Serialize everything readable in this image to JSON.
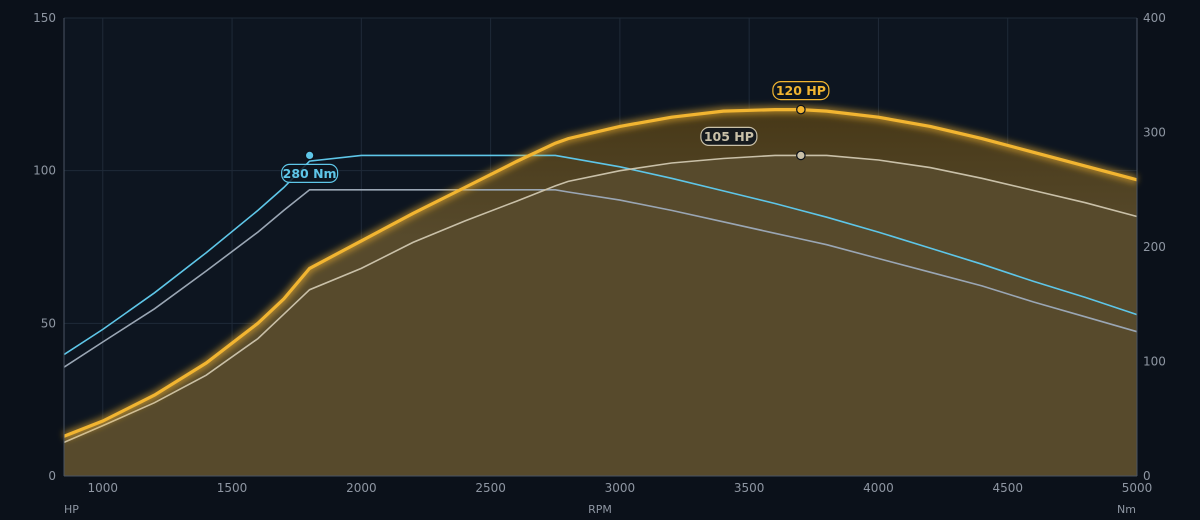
{
  "chart_data": {
    "type": "line",
    "x": [
      850,
      1000,
      1200,
      1400,
      1600,
      1700,
      1800,
      2000,
      2200,
      2400,
      2600,
      2750,
      2800,
      3000,
      3200,
      3400,
      3600,
      3700,
      3800,
      4000,
      4200,
      4400,
      4600,
      4800,
      5000
    ],
    "series": [
      {
        "name": "",
        "axis": "left",
        "color": "#f2b531",
        "values": [
          13,
          18,
          26.5,
          37,
          50,
          58,
          68,
          77,
          86,
          94.5,
          103,
          109,
          110.5,
          114.5,
          117.5,
          119.5,
          120,
          120,
          119.5,
          117.5,
          114.5,
          110.5,
          106,
          101.5,
          97
        ]
      },
      {
        "name": "",
        "axis": "left",
        "color": "#c9c0a8",
        "values": [
          11,
          16.5,
          24,
          33,
          45,
          53,
          61,
          68,
          76.5,
          83.5,
          90,
          95,
          96.5,
          100,
          102.5,
          104,
          105,
          105,
          105,
          103.5,
          101,
          97.5,
          93.5,
          89.5,
          85
        ]
      },
      {
        "name": "",
        "axis": "right",
        "color": "#5ec6e8",
        "values": [
          106,
          128,
          160,
          195,
          232,
          252,
          275,
          280,
          280,
          280,
          280,
          280,
          278,
          270,
          260,
          249,
          238,
          232,
          226,
          213,
          199,
          185,
          170,
          156,
          141
        ]
      },
      {
        "name": "",
        "axis": "right",
        "color": "#9aa6b4",
        "values": [
          95,
          117,
          146,
          179,
          213,
          232,
          250,
          250,
          250,
          250,
          250,
          250,
          248,
          241,
          232,
          222,
          212,
          207,
          202,
          190,
          178,
          166,
          152,
          139,
          126
        ]
      }
    ],
    "xlabel": "RPM",
    "ylabel_left": "HP",
    "ylabel_right": "Nm",
    "xlim": [
      850,
      5000
    ],
    "ylim_left": [
      0,
      150
    ],
    "ylim_right": [
      0,
      400
    ],
    "xticks": [
      1000,
      1500,
      2000,
      2500,
      3000,
      3500,
      4000,
      4500,
      5000
    ],
    "yticks_left": [
      0,
      50,
      100,
      150
    ],
    "yticks_right": [
      0,
      100,
      200,
      300,
      400
    ],
    "grid": true,
    "annotations": [
      {
        "text": "120 HP",
        "x": 3700,
        "y": 120,
        "axis": "left",
        "color": "#f2b531",
        "placement": "above"
      },
      {
        "text": "105 HP",
        "x": 3700,
        "y": 105,
        "axis": "left",
        "color": "#c9c0a8",
        "placement": "above-left"
      },
      {
        "text": "280 Nm",
        "x": 1800,
        "y": 280,
        "axis": "right",
        "color": "#5ec6e8",
        "placement": "below"
      }
    ]
  }
}
